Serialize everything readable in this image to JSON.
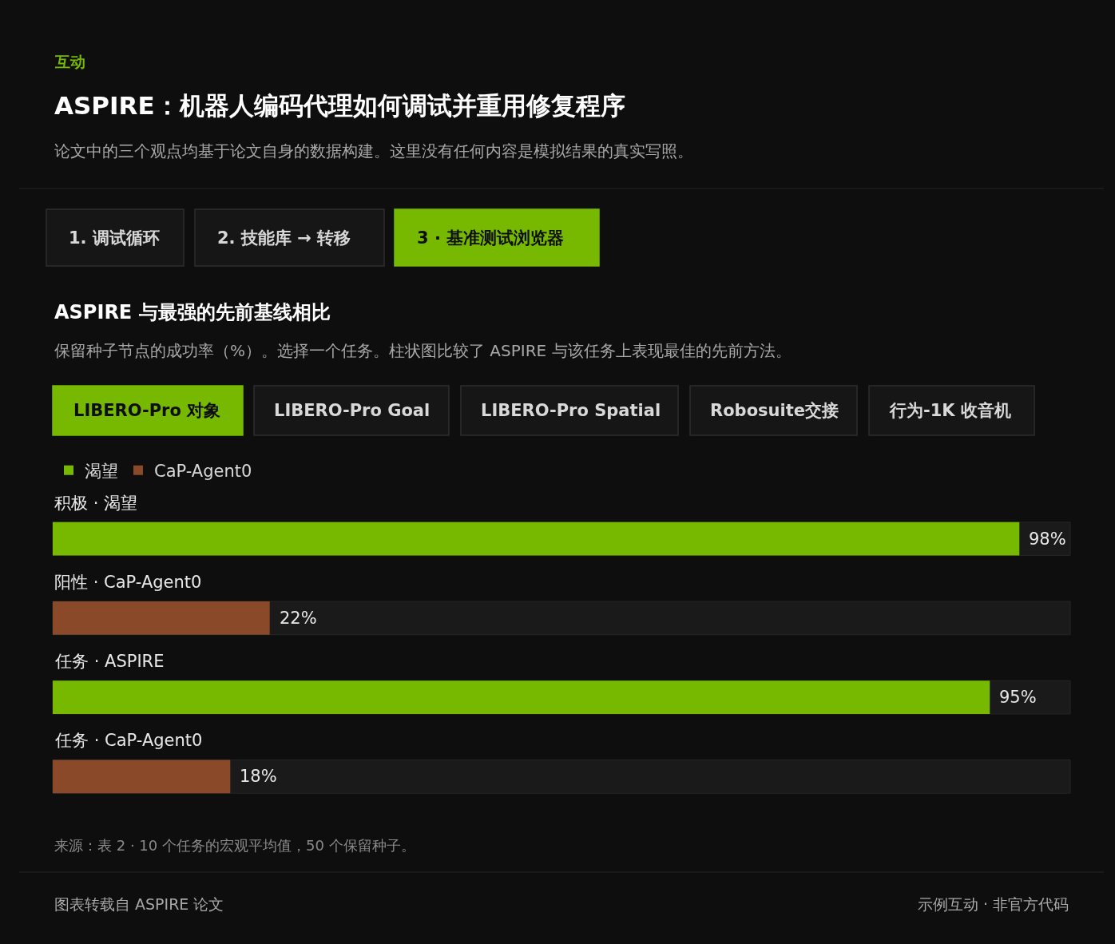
{
  "chart_data": {
    "type": "bar",
    "orientation": "horizontal",
    "title": "ASPIRE：机器人编码代理如何调试并重用修复程序",
    "subtitle": "论文中的三个观点均基于论文自身的数据构建。这里没有任何内容是模拟结果的真实写照。",
    "categories": [
      "积极 · 渴望",
      "阳性 · CaP-Agent0",
      "任务 · ASPIRE",
      "任务 · CaP-Agent0"
    ],
    "series": [
      {
        "name": "渴望",
        "color": "#76b900",
        "values": [
          98,
          null,
          95,
          null
        ],
        "value_labels": [
          "98%",
          null,
          "95%",
          null
        ]
      },
      {
        "name": "CaP-Agent0",
        "color": "#8a4a2a",
        "values": [
          null,
          22,
          null,
          18
        ],
        "value_labels": [
          null,
          "22%",
          null,
          "18%"
        ]
      }
    ],
    "tick_labels": false,
    "grid": false,
    "legend": "top left",
    "annotations": [
      "互动",
      "1. 调试循环",
      "2. 技能库 → 转移",
      "3 · 基准测试浏览器",
      "ASPIRE 与最强的先前基线相比",
      "保留种子节点的成功率（%）。选择一个任务。柱状图比较了 ASPIRE 与该任务上表现最佳的先前方法。",
      "LIBERO-Pro 对象",
      "LIBERO-Pro Goal",
      "LIBERO-Pro Spatial",
      "Robosuite交接",
      "行为-1K 收音机",
      "来源：表 2 · 10 个任务的宏观平均值，50 个保留种子。",
      "图表转载自 ASPIRE 论文",
      "示例互动 · 非官方代码"
    ]
  }
}
